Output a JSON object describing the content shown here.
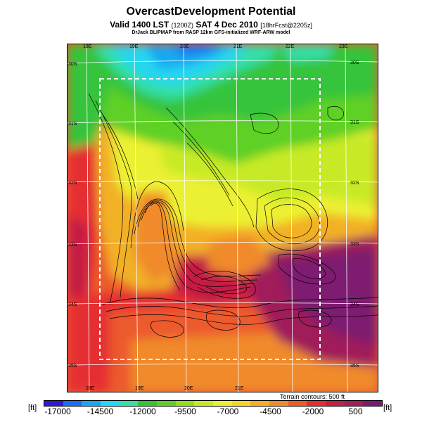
{
  "title": "OvercastDevelopment Potential",
  "subtitle": "Valid 1400 LST",
  "subtitle_utc": "(1200Z)",
  "subtitle_date": "SAT 4 Dec 2010",
  "subtitle_fcst": "[18hrFcst@2205z]",
  "credit": "DrJack BLIPMAP from RASP 12km GFS-initialized WRF-ARW model",
  "terrain_note": "Terrain contours: 500 ft",
  "unit_left": "[ft]",
  "unit_right": "[ft]",
  "axes": {
    "lon_top": [
      "18E",
      "19E",
      "20E",
      "21E",
      "22E",
      "23E"
    ],
    "lon_bottom": [
      "18E",
      "19E",
      "20E",
      "21E"
    ],
    "lat_left": [
      "30S",
      "31S",
      "32S",
      "33S",
      "34S",
      "35S"
    ],
    "lat_right": [
      "30S",
      "31S",
      "32S",
      "33S",
      "34S",
      "35S"
    ]
  },
  "legend": {
    "ticks": [
      "-17000",
      "-14500",
      "-12000",
      "-9500",
      "-7000",
      "-4500",
      "-2000",
      "500"
    ],
    "colors": [
      "#2a1bd6",
      "#1e6cf2",
      "#18a8f2",
      "#25d6f0",
      "#33e0a8",
      "#34c43a",
      "#5fd028",
      "#8fe020",
      "#c7ea28",
      "#ecf030",
      "#f4d62a",
      "#f2b027",
      "#f08a2a",
      "#ec5a2d",
      "#e52d31",
      "#c41f44",
      "#a01e5a",
      "#7d1a6f"
    ]
  }
}
